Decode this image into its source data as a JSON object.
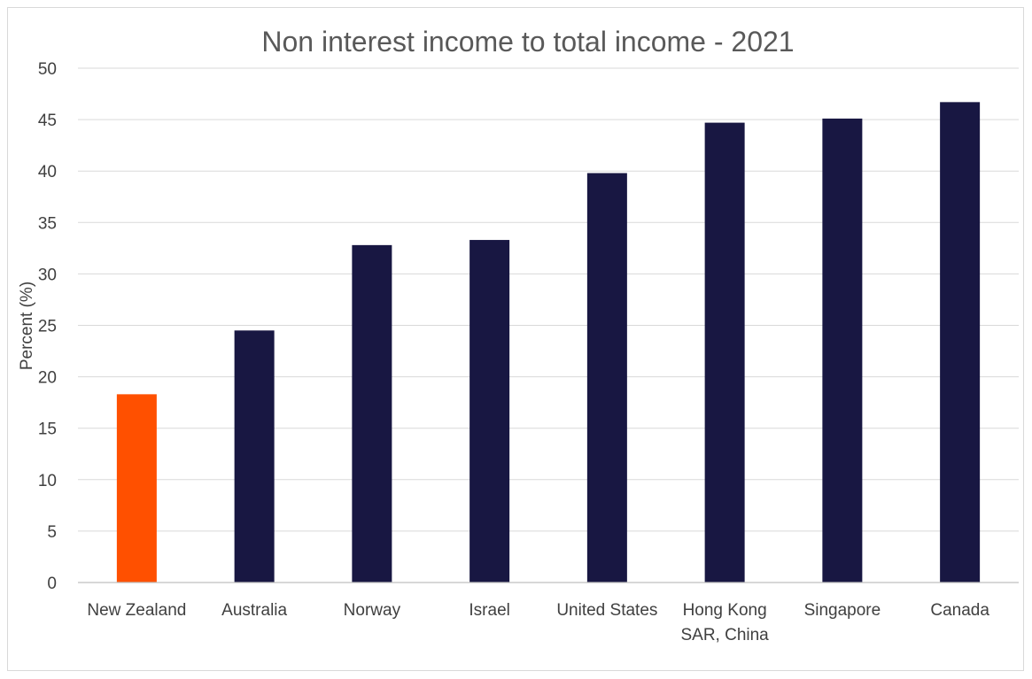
{
  "chart_data": {
    "type": "bar",
    "title": "Non interest income to total income - 2021",
    "xlabel": "",
    "ylabel": "Percent (%)",
    "ylim": [
      0,
      50
    ],
    "yticks": [
      "0",
      "5",
      "10",
      "15",
      "20",
      "25",
      "30",
      "35",
      "40",
      "45",
      "50"
    ],
    "categories": [
      [
        "New Zealand"
      ],
      [
        "Australia"
      ],
      [
        "Norway"
      ],
      [
        "Israel"
      ],
      [
        "United States"
      ],
      [
        "Hong Kong",
        "SAR, China"
      ],
      [
        "Singapore"
      ],
      [
        "Canada"
      ]
    ],
    "values": [
      18.3,
      24.5,
      32.8,
      33.3,
      39.8,
      44.7,
      45.1,
      46.7
    ],
    "colors": [
      "#ff5000",
      "#181742",
      "#181742",
      "#181742",
      "#181742",
      "#181742",
      "#181742",
      "#181742"
    ],
    "grid": true,
    "legend": "none"
  }
}
